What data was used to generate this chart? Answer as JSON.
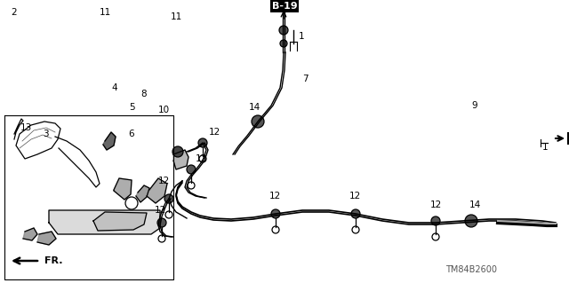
{
  "bg_color": "#ffffff",
  "tm_code": "TM84B2600",
  "black": "#000000",
  "gray": "#888888",
  "darkgray": "#444444"
}
